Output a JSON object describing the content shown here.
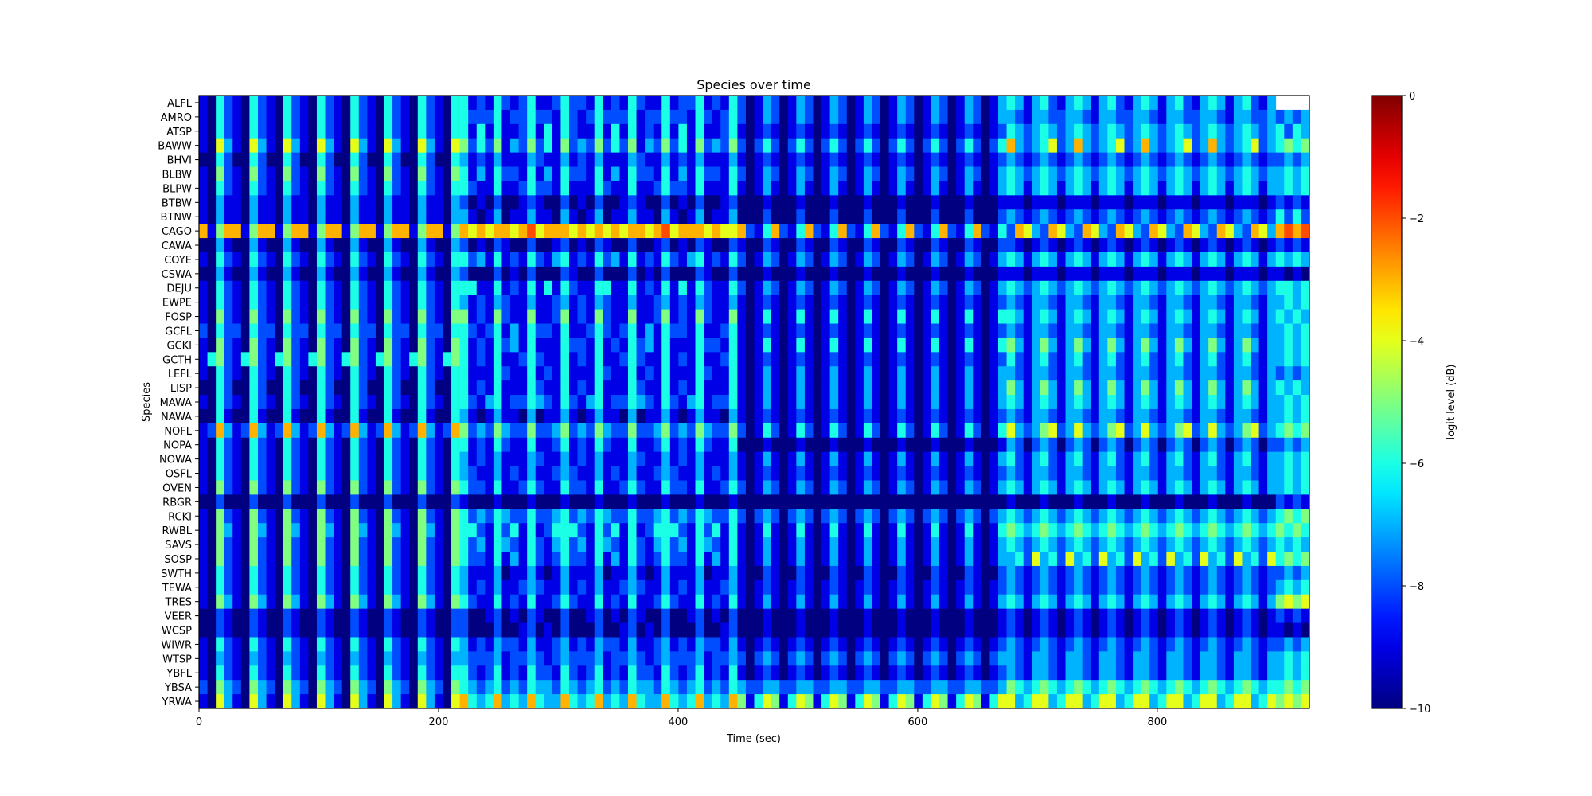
{
  "chart_data": {
    "type": "heatmap",
    "title": "Species over time",
    "xlabel": "Time (sec)",
    "ylabel": "Species",
    "xlim": [
      0,
      927
    ],
    "x_ticks": [
      0,
      200,
      400,
      600,
      800
    ],
    "y_categories": [
      "ALFL",
      "AMRO",
      "ATSP",
      "BAWW",
      "BHVI",
      "BLBW",
      "BLPW",
      "BTBW",
      "BTNW",
      "CAGO",
      "CAWA",
      "COYE",
      "CSWA",
      "DEJU",
      "EWPE",
      "FOSP",
      "GCFL",
      "GCKI",
      "GCTH",
      "LEFL",
      "LISP",
      "MAWA",
      "NAWA",
      "NOFL",
      "NOPA",
      "NOWA",
      "OSFL",
      "OVEN",
      "RBGR",
      "RCKI",
      "RWBL",
      "SAVS",
      "SOSP",
      "SWTH",
      "TEWA",
      "TRES",
      "VEER",
      "WCSP",
      "WIWR",
      "WTSP",
      "YBFL",
      "YBSA",
      "YRWA"
    ],
    "colorbar": {
      "label": "logit level (dB)",
      "range": [
        -10,
        0
      ],
      "ticks": [
        0,
        -2,
        -4,
        -6,
        -8,
        -10
      ],
      "colormap": "jet"
    },
    "cells": [
      "10421042104210421042104210421044121421241124221412142114122412142013201320132013201320132013201343134213431342134313421343134213",
      "104210421042104210421042104210442224122422142124222412242214212420132013201320132013201320132013321332233213322332133223321332232323",
      "104210421042104210421042104210441414112414142114141412141414112410121012101210121012101210121012432343234323432343234323432343234243",
      "106310631063106310631063106310652425132524152325242513252415232520242024202420242024202420242024732346237323462373234623732346234545",
      "004200420042004200420042004200431213111321131213111321131213111310121012101210121012101210121012321232123212321232123212321232122323",
      "105210521052105210521052105210541314221413142214131422141314221420132013201320132013201320132013432343234323432343234323432343233434",
      "104210421042104210421042104210442114112422141114211411242214111410131013101310131013101310131013431343134313431343134313431343133434",
      "103110311031103110311031103110320102001210020102001210020102001200010001000100010001000100010001110111011101110111011101110111012121",
      "103110311031103110311031103110331013011311031013011311031013011300020002000200020002000200020002321232123212321232123212321232124242",
      "715771577157715771577157715771576767767867776767676776786777676672147214721472147214721472147214276327632763276327632763276327637878",
      "003100310031003100310031003100320102100200120102100200120102100210021002100210021002100210021002210121012101210121012101210121012121",
      "104210421042104210421042104210442314121421341214231412142134121420132013201320132013201320132013431343134313431343134313431343134343",
      "003100310031003100310031003100320002010200021002000201020002100200010001000100010001000100010001110111011101110111011101110111011010",
      "104210421042104210421042104210444114121414142114411412141414211420132013201320132013201320132013432343234323432343234323432343234434",
      "104210421042104210421042104210431213211311231213211311231213211310121012101210121012101210121012321332133213321332133213321332133434",
      "105210521052105210521052105210551215211511251215211511251215211510141014101410141014101410141014431343134313431343134313431343134343",
      "204220422042204220422042204220442124131422141124212413142214112410121012101210121012101210121012321332133213321332133213321332133434",
      "105210521052105210521052105210541214231411142214121423141114221410141014101410141014101410141014531353135313531353135313531353133434",
      "145214521452145214521452145214541214112421141214112421141214112410121012101210121012101210121012421342134213421342134213421342133434",
      "104210421042104210421042104210441114211412141114211412141114211410131013101310131013101310131013321332133213321332133213321332132323",
      "004200420042004200420042004200441214111421141214111421141214111410131013101310131013101310131013531353135313531353135313531353134343",
      "104210421042104210421042104210442134122432142134122432142134122410131013101310131013101310131013431343134313431343134313431343133434",
      "004100410041004100410041004100431013110301131013110301131013110310121012101210121012101210121012321332133213321332133213321332133434",
      "127312731273127312731273127312752325322522352325322522352325322520142014201420142014201420142014632356236323562363235623632356234545",
      "104210421042104210421042104210441214211411241214211411241214211400010001000100010001000100010001320232023202320232023202320232022323",
      "104210421042104210421042104210431213111321131213111321131213111310131013101310131013101310131013421342134213421342134213421342133434",
      "104210421042104210421042104210432113121311232113121311232113121310121012101210121012101210121012321332133213321332133213321332133434",
      "105210521052105210521052105210542214112421142214112421142214112420132013201320132013201320132013431343134313431343134313431343133434",
      "002000200020002000200020002000210001000100010001000100010001000100000000000000000000000000000000100010001000100010001000100010002121",
      "105210521052105210521052105210542324322422342324322422342324322420232023202320232023202320232023432343234323432343234323432343234545",
      "105310531053105310531053105310544214241412444214241412444214241410141014101410141014101410141014543454345434543454345434543454345454",
      "105210521052105210521052105210542314321421342314321421342314321410131013101310131013101310131013432343234323432343234323432343234343",
      "105210521052105210521052105210542214131421242214131421242214131410131013101310131013101310131013342634263426342634263426342634264545",
      "104210421042104210421042104210431113011310131113011310131113011310021002100210021002100210021002321232123212321232123212321232122323",
      "104210421042104210421042104210431213112321131213112321131213112310121012101210121012101210121012321232123212321232123212321232123434",
      "105310531053105310531053105310542114121411242114121411242114121410131013101310131013101310131013431343134313431343134313431343135656",
      "002100210021002100210021002100220012010210020012010210020012010200010001000100010001000100010001210121012101210121012101210121012121",
      "002100210021002100210021002100220002001201020002001201020002001200010001000100010001000100010001210121012101210121012101210121011010",
      "104210421042104210421042104210431213221311231213221311231213221310121012101210121012101210121012321232123212321232123212321232122323",
      "103210321032103210321032103210332223122321232223122321232223122320232023202320232023202320232023321332133213321332133213321332133434",
      "104210421042104210421042104210442124121422142124121422142124121410121012101210121012101210121012321332133213321332133213321332133434",
      "205320532053205320532053205320543234232433243234232433243234232432233223322332233223322332233223543454345434543454345434543454344545",
      "106310631063106310631063106310674347343743374347343743374347343751465146514651465146514651465146634663466346634663466346634663465656"
    ]
  }
}
